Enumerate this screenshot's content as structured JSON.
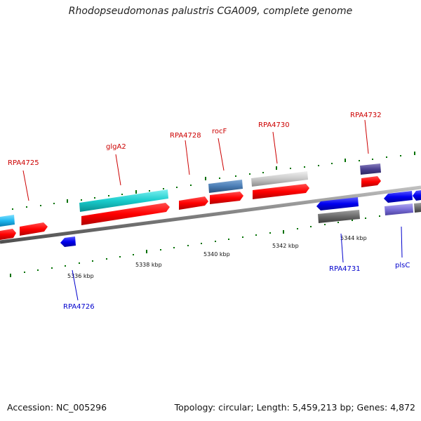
{
  "title": "Rhodopseudomonas palustris CGA009, complete genome",
  "footer": {
    "accession": "Accession: NC_005296",
    "summary": "Topology: circular; Length: 5,459,213 bp; Genes: 4,872"
  },
  "colors": {
    "forward_label": "#cc0000",
    "reverse_label": "#0000cc",
    "backbone": "#808080",
    "ticks": "#007000"
  },
  "tick_labels": [
    "5336 kbp",
    "5338 kbp",
    "5340 kbp",
    "5342 kbp",
    "5344 kbp"
  ],
  "gene_labels": [
    {
      "name": "RPA4725",
      "strand": "forward"
    },
    {
      "name": "glgA2",
      "strand": "forward"
    },
    {
      "name": "RPA4728",
      "strand": "forward"
    },
    {
      "name": "rocF",
      "strand": "forward"
    },
    {
      "name": "RPA4730",
      "strand": "forward"
    },
    {
      "name": "RPA4732",
      "strand": "forward"
    },
    {
      "name": "RPA4726",
      "strand": "reverse"
    },
    {
      "name": "RPA4731",
      "strand": "reverse"
    },
    {
      "name": "plsC",
      "strand": "reverse"
    }
  ]
}
